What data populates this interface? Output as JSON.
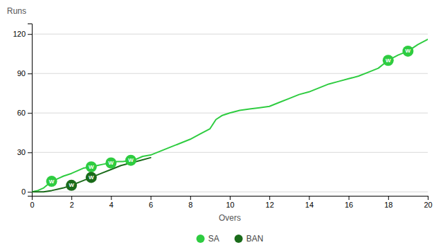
{
  "chart_data": {
    "type": "line",
    "xlabel": "Overs",
    "ylabel": "Runs",
    "xlim": [
      0,
      20
    ],
    "ylim": [
      -3,
      128
    ],
    "xticks": [
      0,
      2,
      4,
      6,
      8,
      10,
      12,
      14,
      16,
      18,
      20
    ],
    "yticks": [
      0,
      30,
      60,
      90,
      120
    ],
    "grid": "y",
    "legend": "bottom",
    "series": [
      {
        "name": "SA",
        "color": "#2ecc40",
        "x": [
          0,
          0.3,
          0.6,
          1.0,
          1.3,
          1.6,
          2.0,
          2.3,
          2.6,
          3.0,
          3.3,
          3.6,
          4.0,
          4.3,
          4.6,
          5.0,
          5.3,
          5.6,
          6.0,
          6.5,
          7.0,
          7.5,
          8.0,
          8.5,
          9.0,
          9.3,
          9.6,
          10.0,
          10.5,
          11.0,
          11.5,
          12.0,
          12.5,
          13.0,
          13.5,
          14.0,
          14.5,
          15.0,
          15.5,
          16.0,
          16.5,
          17.0,
          17.5,
          18.0,
          18.5,
          19.0,
          19.5,
          20.0
        ],
        "values": [
          0,
          1,
          3,
          8,
          10,
          12,
          14,
          16,
          18,
          19,
          20,
          21,
          22,
          23,
          23,
          24,
          25,
          27,
          28,
          31,
          34,
          37,
          40,
          44,
          48,
          55,
          58,
          60,
          62,
          63,
          64,
          65,
          68,
          71,
          74,
          76,
          79,
          82,
          84,
          86,
          88,
          91,
          94,
          100,
          104,
          107,
          112,
          116
        ],
        "wickets": {
          "label": "W",
          "color": "#2ecc40",
          "x": [
            1.0,
            3.0,
            4.0,
            5.0,
            18.0,
            19.0
          ],
          "values": [
            8,
            19,
            22,
            24,
            100,
            107
          ]
        }
      },
      {
        "name": "BAN",
        "color": "#1a6b1a",
        "x": [
          0,
          0.3,
          0.6,
          1.0,
          1.3,
          1.6,
          2.0,
          2.5,
          3.0,
          3.5,
          4.0,
          4.5,
          5.0,
          5.5,
          6.0
        ],
        "values": [
          0,
          0,
          0,
          1,
          2,
          3,
          5,
          8,
          11,
          14,
          17,
          20,
          22,
          24,
          26
        ],
        "wickets": {
          "label": "W",
          "color": "#1a6b1a",
          "x": [
            2.0,
            3.0
          ],
          "values": [
            5,
            11
          ]
        }
      }
    ]
  }
}
